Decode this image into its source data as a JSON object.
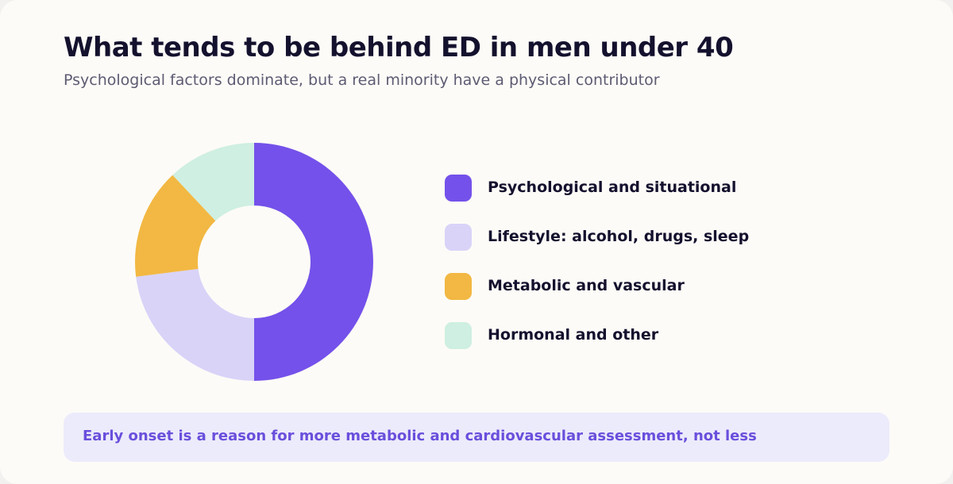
{
  "header": {
    "title": "What tends to be behind ED in men under 40",
    "subtitle": "Psychological factors dominate, but a real minority have a physical contributor"
  },
  "chart_data": {
    "type": "pie",
    "donut": true,
    "title": "What tends to be behind ED in men under 40",
    "subtitle": "Psychological factors dominate, but a real minority have a physical contributor",
    "legend_position": "right",
    "slices": [
      {
        "label": "Psychological and situational",
        "value": 50,
        "color": "#7451ea"
      },
      {
        "label": "Lifestyle: alcohol, drugs, sleep",
        "value": 23,
        "color": "#d9d3f8"
      },
      {
        "label": "Metabolic and vascular",
        "value": 15,
        "color": "#f2b843"
      },
      {
        "label": "Hormonal and other",
        "value": 12,
        "color": "#ceefe2"
      }
    ]
  },
  "note": {
    "text": "Early onset is a reason for more metabolic and cardiovascular assessment, not less"
  }
}
